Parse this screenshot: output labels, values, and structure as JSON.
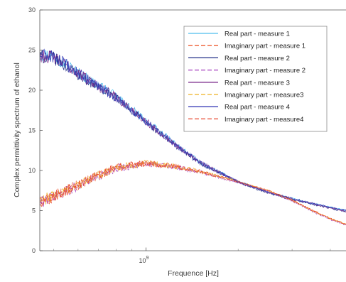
{
  "chart_data": {
    "type": "line",
    "title": "",
    "xlabel": "Frequence [Hz]",
    "ylabel": "Complex permittivity spectrum of ethanol",
    "x_scale": "log",
    "x_ticks": [
      {
        "value": 1000000000,
        "base": "10",
        "exponent": "9"
      }
    ],
    "xlim": [
      450000000,
      4500000000
    ],
    "ylim": [
      0,
      30
    ],
    "y_ticks": [
      "0",
      "5",
      "10",
      "15",
      "20",
      "25",
      "30"
    ],
    "grid": false,
    "legend_position": "top-right",
    "series": [
      {
        "name": "Real part - measure 1",
        "color": "#4dbeee",
        "style": "solid",
        "part": "real",
        "x": [
          450000000,
          500000000,
          600000000,
          700000000,
          800000000,
          1000000000,
          1200000000,
          1500000000,
          2000000000,
          2500000000,
          3000000000,
          3500000000,
          4000000000,
          4500000000
        ],
        "values": [
          24.5,
          24.3,
          22.2,
          20.6,
          19.2,
          16.2,
          13.8,
          11.0,
          8.6,
          7.3,
          6.5,
          5.9,
          5.4,
          5.0
        ]
      },
      {
        "name": "Imaginary part - measure 1",
        "color": "#ee5c33",
        "style": "dashed",
        "part": "imag",
        "x": [
          450000000,
          500000000,
          600000000,
          700000000,
          800000000,
          1000000000,
          1200000000,
          1500000000,
          2000000000,
          2500000000,
          3000000000,
          3500000000,
          4000000000,
          4500000000
        ],
        "values": [
          6.0,
          6.8,
          8.2,
          9.4,
          10.4,
          10.9,
          10.6,
          9.9,
          8.6,
          7.5,
          6.3,
          5.0,
          4.0,
          3.3
        ]
      },
      {
        "name": "Real part - measure 2",
        "color": "#1f2b86",
        "style": "solid",
        "part": "real",
        "x": [
          450000000,
          500000000,
          600000000,
          700000000,
          800000000,
          1000000000,
          1200000000,
          1500000000,
          2000000000,
          2500000000,
          3000000000,
          3500000000,
          4000000000,
          4500000000
        ],
        "values": [
          24.2,
          24.0,
          22.0,
          20.4,
          19.0,
          16.0,
          13.6,
          10.9,
          8.5,
          7.2,
          6.4,
          5.8,
          5.3,
          4.9
        ]
      },
      {
        "name": "Imaginary part - measure 2",
        "color": "#a23bbd",
        "style": "dashed",
        "part": "imag",
        "x": [
          450000000,
          500000000,
          600000000,
          700000000,
          800000000,
          1000000000,
          1200000000,
          1500000000,
          2000000000,
          2500000000,
          3000000000,
          3500000000,
          4000000000,
          4500000000
        ],
        "values": [
          6.0,
          6.8,
          8.1,
          9.3,
          10.3,
          10.8,
          10.5,
          9.8,
          8.5,
          7.4,
          6.2,
          4.9,
          3.9,
          3.2
        ]
      },
      {
        "name": "Real part - measure 3",
        "color": "#7e2f8e",
        "style": "solid",
        "part": "real",
        "x": [
          450000000,
          500000000,
          600000000,
          700000000,
          800000000,
          1000000000,
          1200000000,
          1500000000,
          2000000000,
          2500000000,
          3000000000,
          3500000000,
          4000000000,
          4500000000
        ],
        "values": [
          24.3,
          24.1,
          22.1,
          20.5,
          19.1,
          16.1,
          13.7,
          11.0,
          8.6,
          7.3,
          6.5,
          5.9,
          5.3,
          4.9
        ]
      },
      {
        "name": "Imaginary part - measure3",
        "color": "#edb120",
        "style": "dashed",
        "part": "imag",
        "x": [
          450000000,
          500000000,
          600000000,
          700000000,
          800000000,
          1000000000,
          1200000000,
          1500000000,
          2000000000,
          2500000000,
          3000000000,
          3500000000,
          4000000000,
          4500000000
        ],
        "values": [
          6.1,
          6.9,
          8.2,
          9.4,
          10.4,
          10.9,
          10.6,
          9.9,
          8.6,
          7.5,
          6.3,
          5.0,
          4.0,
          3.3
        ]
      },
      {
        "name": "Real part - measure 4",
        "color": "#3b3fb8",
        "style": "solid",
        "part": "real",
        "x": [
          450000000,
          500000000,
          600000000,
          700000000,
          800000000,
          1000000000,
          1200000000,
          1500000000,
          2000000000,
          2500000000,
          3000000000,
          3500000000,
          4000000000,
          4500000000
        ],
        "values": [
          24.4,
          24.2,
          22.1,
          20.5,
          19.1,
          16.1,
          13.7,
          11.0,
          8.6,
          7.3,
          6.5,
          5.9,
          5.4,
          5.0
        ]
      },
      {
        "name": "Imaginary part - measure4",
        "color": "#e8432a",
        "style": "dashed",
        "part": "imag",
        "x": [
          450000000,
          500000000,
          600000000,
          700000000,
          800000000,
          1000000000,
          1200000000,
          1500000000,
          2000000000,
          2500000000,
          3000000000,
          3500000000,
          4000000000,
          4500000000
        ],
        "values": [
          6.0,
          6.8,
          8.2,
          9.4,
          10.4,
          10.9,
          10.6,
          9.9,
          8.6,
          7.5,
          6.3,
          5.0,
          4.0,
          3.3
        ]
      }
    ]
  }
}
